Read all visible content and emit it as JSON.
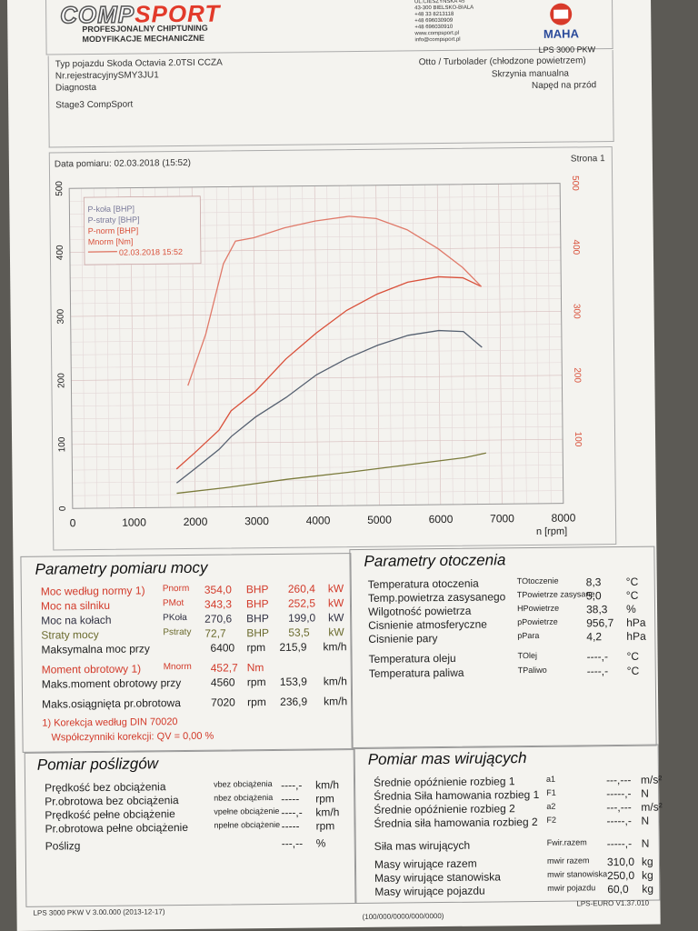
{
  "header": {
    "logo_left": "COMP",
    "logo_right": "SPORT",
    "tagline1": "PROFESJONALNY CHIPTUNING",
    "tagline2": "MODYFIKACJE MECHANICZNE",
    "address": [
      "UL.CIESZYNSKA 45",
      "43-300 BIELSKO-BIALA",
      "+48 33 8213118",
      "+48 696030909",
      "+48 696030910",
      "www.compsport.pl",
      "info@compsport.pl"
    ],
    "maha_logo": "MAHA",
    "lps": "LPS 3000 PKW"
  },
  "vehicle": {
    "typ": "Typ pojazdu    Skoda Octavia 2.0TSI CCZA",
    "nr": "Nr.rejestracyjnySMY3JU1",
    "diag": "Diagnosta",
    "engine": "Otto / Turbolader (chłodzone powietrzem)",
    "gearbox": "Skrzynia manualna",
    "drive": "Napęd na przód",
    "stage": "Stage3 CompSport"
  },
  "measurement": {
    "date": "Data pomiaru: 02.03.2018 (15:52)",
    "page": "Strona 1"
  },
  "chart_data": {
    "type": "line",
    "xlabel": "n [rpm]",
    "xlim": [
      0,
      8000
    ],
    "ylim": [
      0,
      500
    ],
    "x_ticks": [
      "0",
      "1000",
      "2000",
      "3000",
      "4000",
      "5000",
      "6000",
      "7000",
      "8000"
    ],
    "y_ticks_left": [
      "0",
      "100",
      "200",
      "300",
      "400",
      "500"
    ],
    "y_ticks_right": [
      "100",
      "200",
      "300",
      "400",
      "500"
    ],
    "legend": [
      "P-koła [BHP]",
      "P-straty [BHP]",
      "P-norm [BHP]",
      "Mnorm [Nm]",
      "02.03.2018 15:52"
    ],
    "series": [
      {
        "name": "P-norm [BHP]",
        "color": "#d9503a",
        "x": [
          1700,
          2000,
          2400,
          2600,
          3000,
          3500,
          4000,
          4500,
          5000,
          5500,
          6000,
          6400,
          6700
        ],
        "y": [
          60,
          85,
          120,
          150,
          180,
          230,
          270,
          305,
          330,
          348,
          356,
          354,
          340
        ]
      },
      {
        "name": "P-koła [BHP]",
        "color": "#556070",
        "x": [
          1700,
          2000,
          2400,
          2600,
          3000,
          3500,
          4000,
          4500,
          5000,
          5500,
          6000,
          6400,
          6700
        ],
        "y": [
          38,
          60,
          90,
          110,
          140,
          170,
          205,
          230,
          250,
          265,
          272,
          270,
          245
        ]
      },
      {
        "name": "P-straty [BHP]",
        "color": "#7a7a3a",
        "x": [
          1700,
          2500,
          3500,
          4500,
          5500,
          6400,
          6750
        ],
        "y": [
          22,
          30,
          42,
          52,
          63,
          73,
          80
        ]
      },
      {
        "name": "Mnorm [Nm]",
        "color": "#e07a6a",
        "x": [
          1900,
          2200,
          2500,
          2700,
          3000,
          3500,
          4000,
          4560,
          5000,
          5500,
          6000,
          6400,
          6700
        ],
        "y": [
          190,
          270,
          380,
          415,
          420,
          435,
          445,
          452,
          448,
          430,
          400,
          370,
          340
        ]
      }
    ]
  },
  "params_power": {
    "title": "Parametry pomiaru mocy",
    "rows": [
      {
        "label": "Moc według normy 1)",
        "sym": "Pnorm",
        "v1": "354,0",
        "u1": "BHP",
        "v2": "260,4",
        "u2": "kW"
      },
      {
        "label": "Moc na silniku",
        "sym": "PMot",
        "v1": "343,3",
        "u1": "BHP",
        "v2": "252,5",
        "u2": "kW"
      },
      {
        "label": "Moc na kołach",
        "sym": "PKoła",
        "v1": "270,6",
        "u1": "BHP",
        "v2": "199,0",
        "u2": "kW"
      },
      {
        "label": "Straty mocy",
        "sym": "Pstraty",
        "v1": "72,7",
        "u1": "BHP",
        "v2": "53,5",
        "u2": "kW"
      }
    ],
    "max_power": {
      "label": "Maksymalna moc przy",
      "v1": "6400",
      "u1": "rpm",
      "v2": "215,9",
      "u2": "km/h"
    },
    "torque": {
      "label": "Moment obrotowy 1)",
      "sym": "Mnorm",
      "v1": "452,7",
      "u1": "Nm"
    },
    "max_torque": {
      "label": "Maks.moment obrotowy przy",
      "v1": "4560",
      "u1": "rpm",
      "v2": "153,9",
      "u2": "km/h"
    },
    "max_rpm": {
      "label": "Maks.osiągnięta pr.obrotowa",
      "v1": "7020",
      "u1": "rpm",
      "v2": "236,9",
      "u2": "km/h"
    },
    "correction": "1) Korekcja według DIN 70020",
    "coeff": "Współczynniki korekcji: QV =   0,00 %"
  },
  "params_env": {
    "title": "Parametry otoczenia",
    "rows": [
      {
        "label": "Temperatura otoczenia",
        "sym": "TOtoczenie",
        "val": "8,3",
        "unit": "°C"
      },
      {
        "label": "Temp.powietrza zasysanego",
        "sym": "TPowietrze zasysane",
        "val": "5,0",
        "unit": "°C"
      },
      {
        "label": "Wilgotność powietrza",
        "sym": "HPowietrze",
        "val": "38,3",
        "unit": "%"
      },
      {
        "label": "Cisnienie atmosferyczne",
        "sym": "pPowietrze",
        "val": "956,7",
        "unit": "hPa"
      },
      {
        "label": "Cisnienie pary",
        "sym": "pPara",
        "val": "4,2",
        "unit": "hPa"
      },
      {
        "label": "Temperatura oleju",
        "sym": "TOlej",
        "val": "----,-",
        "unit": "°C"
      },
      {
        "label": "Temperatura paliwa",
        "sym": "TPaliwo",
        "val": "----,-",
        "unit": "°C"
      }
    ]
  },
  "slip": {
    "title": "Pomiar poślizgów",
    "rows": [
      {
        "label": "Prędkość bez obciążenia",
        "sym": "vbez obciążenia",
        "val": "----,-",
        "unit": "km/h"
      },
      {
        "label": "Pr.obrotowa bez obciążenia",
        "sym": "nbez obciążenia",
        "val": "-----",
        "unit": "rpm"
      },
      {
        "label": "Prędkość pełne obciążenie",
        "sym": "vpełne obciążenie",
        "val": "----,-",
        "unit": "km/h"
      },
      {
        "label": "Pr.obrotowa pełne obciążenie",
        "sym": "npełne obciążenie",
        "val": "-----",
        "unit": "rpm"
      },
      {
        "label": "Poślizg",
        "sym": "",
        "val": "---,--",
        "unit": "%"
      }
    ]
  },
  "masses": {
    "title": "Pomiar mas wirujących",
    "rows": [
      {
        "label": "Średnie opóźnienie rozbieg 1",
        "sym": "a1",
        "val": "---,---",
        "unit": "m/s²"
      },
      {
        "label": "Średnia Siła hamowania rozbieg 1",
        "sym": "F1",
        "val": "-----,-",
        "unit": "N"
      },
      {
        "label": "Średnie opóźnienie rozbieg 2",
        "sym": "a2",
        "val": "---,---",
        "unit": "m/s²"
      },
      {
        "label": "Średnia siła hamowania rozbieg 2",
        "sym": "F2",
        "val": "-----,-",
        "unit": "N"
      },
      {
        "label": "Siła mas wirujących",
        "sym": "Fwir.razem",
        "val": "-----,-",
        "unit": "N"
      },
      {
        "label": "Masy wirujące razem",
        "sym": "mwir razem",
        "val": "310,0",
        "unit": "kg"
      },
      {
        "label": "Masy wirujące stanowiska",
        "sym": "mwir stanowiska",
        "val": "250,0",
        "unit": "kg"
      },
      {
        "label": "Masy wirujące pojazdu",
        "sym": "mwir pojazdu",
        "val": "60,0",
        "unit": "kg"
      }
    ]
  },
  "footer": {
    "left": "LPS 3000 PKW V 3.00.000 (2013-12-17)",
    "center": "(100/000/0000/000/0000)",
    "right": "LPS-EURO V1.37.010"
  }
}
